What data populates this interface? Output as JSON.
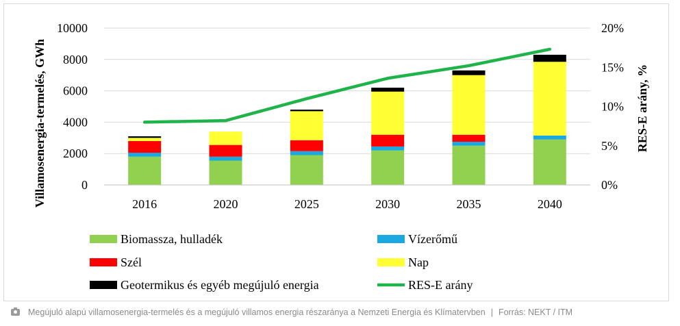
{
  "chart_data": {
    "type": "bar",
    "stacked": true,
    "categories": [
      "2016",
      "2020",
      "2025",
      "2030",
      "2035",
      "2040"
    ],
    "series": [
      {
        "name": "Biomassza, hulladék",
        "color": "#92d050",
        "values": [
          1800,
          1550,
          1900,
          2200,
          2500,
          2900
        ]
      },
      {
        "name": "Vízerőmű",
        "color": "#1ba8e0",
        "values": [
          250,
          250,
          250,
          250,
          250,
          250
        ]
      },
      {
        "name": "Szél",
        "color": "#ff0000",
        "values": [
          750,
          750,
          700,
          750,
          450,
          0
        ]
      },
      {
        "name": "Nap",
        "color": "#ffff33",
        "values": [
          200,
          850,
          1850,
          2750,
          3800,
          4700
        ]
      },
      {
        "name": "Geotermikus és egyéb megújuló energia",
        "color": "#000000",
        "values": [
          100,
          0,
          100,
          250,
          300,
          450
        ]
      }
    ],
    "line": {
      "name": "RES-E arány",
      "color": "#1fb44a",
      "values": [
        8.0,
        8.2,
        11.0,
        13.6,
        15.2,
        17.3
      ]
    },
    "ylabel": "Villamosenergia-termelés, GWh",
    "y2label": "RES-E arány, %",
    "ylim": [
      0,
      10000
    ],
    "y2lim": [
      0,
      20
    ],
    "yticks": [
      "0",
      "2000",
      "4000",
      "6000",
      "8000",
      "10000"
    ],
    "y2ticks": [
      "0%",
      "5%",
      "10%",
      "15%",
      "20%"
    ],
    "legend_position": "bottom"
  },
  "caption": {
    "icon": "camera-icon",
    "text": "Megújuló alapú villamosenergia-termelés és a megújuló villamos energia részaránya a Nemzeti Energia és Klímatervben",
    "separator": "|",
    "source": "Forrás: NEKT / ITM"
  }
}
